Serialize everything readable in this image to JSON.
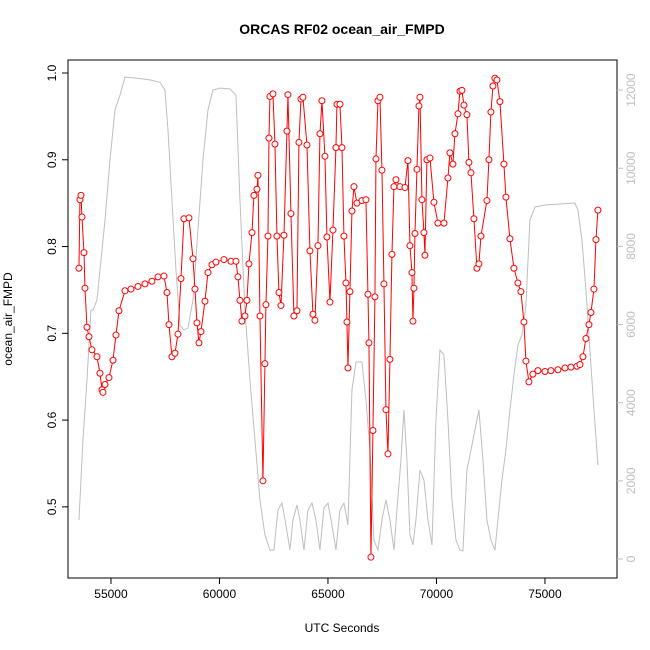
{
  "chart_data": {
    "type": "line",
    "title": "ORCAS RF02 ocean_air_FMPD",
    "x_label": "UTC Seconds",
    "y_label": "ocean_air_FMPD",
    "xlim": [
      53020,
      78320
    ],
    "ylim": [
      0.418,
      1.015
    ],
    "y2lim": [
      -486,
      12770
    ],
    "xticks": [
      55000,
      60000,
      65000,
      70000,
      75000
    ],
    "yticks": [
      0.5,
      0.6,
      0.7,
      0.8,
      0.9,
      {
        "value": 1,
        "label": "1.0"
      }
    ],
    "y2ticks": [
      0,
      2000,
      4000,
      6000,
      8000,
      10000,
      12000
    ],
    "series": [
      {
        "color": "#ff0000",
        "marker": "circle",
        "x": [
          53525,
          53571,
          53618,
          53664,
          53756,
          53802,
          53894,
          53986,
          54124,
          54355,
          54493,
          54585,
          54631,
          54724,
          54908,
          55092,
          55230,
          55369,
          55645,
          55922,
          56244,
          56567,
          56889,
          57166,
          57442,
          57581,
          57673,
          57811,
          57949,
          58087,
          58226,
          58364,
          58594,
          58779,
          58871,
          58963,
          59055,
          59147,
          59332,
          59470,
          59654,
          59838,
          60207,
          60530,
          60760,
          60852,
          60944,
          61036,
          61175,
          61267,
          61359,
          61497,
          61589,
          61728,
          61774,
          61866,
          62004,
          62096,
          62142,
          62235,
          62281,
          62327,
          62465,
          62557,
          62649,
          62741,
          62834,
          62972,
          63110,
          63156,
          63294,
          63433,
          63571,
          63663,
          63755,
          63847,
          64032,
          64170,
          64308,
          64400,
          64539,
          64631,
          64723,
          64861,
          64953,
          65092,
          65230,
          65368,
          65414,
          65552,
          65645,
          65737,
          65829,
          65875,
          65921,
          66013,
          66105,
          66198,
          66336,
          66566,
          66750,
          66843,
          66889,
          66981,
          67073,
          67165,
          67212,
          67304,
          67396,
          67488,
          67580,
          67672,
          67764,
          67856,
          67949,
          68041,
          68133,
          68317,
          68548,
          68686,
          68778,
          68870,
          68916,
          68962,
          69009,
          69101,
          69193,
          69239,
          69331,
          69423,
          69469,
          69561,
          69700,
          69884,
          70068,
          70345,
          70529,
          70621,
          70759,
          70852,
          70990,
          71082,
          71174,
          71266,
          71404,
          71496,
          71589,
          71727,
          71865,
          71957,
          72050,
          72326,
          72418,
          72510,
          72602,
          72695,
          72787,
          72925,
          73109,
          73201,
          73386,
          73570,
          73754,
          73892,
          74030,
          74123,
          74261,
          74445,
          74675,
          75000,
          75276,
          75599,
          75922,
          76198,
          76474,
          76612,
          76750,
          76889,
          77027,
          77119,
          77258,
          77350,
          77442
        ],
        "values": [
          0.775,
          0.854,
          0.859,
          0.834,
          0.793,
          0.752,
          0.707,
          0.696,
          0.681,
          0.673,
          0.654,
          0.635,
          0.632,
          0.641,
          0.649,
          0.669,
          0.698,
          0.726,
          0.749,
          0.751,
          0.754,
          0.757,
          0.76,
          0.765,
          0.766,
          0.747,
          0.71,
          0.673,
          0.677,
          0.699,
          0.763,
          0.832,
          0.833,
          0.786,
          0.751,
          0.712,
          0.689,
          0.702,
          0.737,
          0.77,
          0.779,
          0.782,
          0.785,
          0.783,
          0.783,
          0.765,
          0.738,
          0.714,
          0.72,
          0.738,
          0.78,
          0.816,
          0.859,
          0.866,
          0.882,
          0.72,
          0.53,
          0.665,
          0.733,
          0.812,
          0.925,
          0.973,
          0.976,
          0.918,
          0.812,
          0.747,
          0.732,
          0.813,
          0.933,
          0.975,
          0.838,
          0.72,
          0.726,
          0.92,
          0.97,
          0.972,
          0.917,
          0.795,
          0.722,
          0.715,
          0.801,
          0.93,
          0.968,
          0.904,
          0.811,
          0.736,
          0.819,
          0.914,
          0.964,
          0.964,
          0.914,
          0.812,
          0.758,
          0.713,
          0.66,
          0.748,
          0.841,
          0.869,
          0.85,
          0.853,
          0.854,
          0.745,
          0.689,
          0.442,
          0.588,
          0.742,
          0.901,
          0.968,
          0.972,
          0.888,
          0.757,
          0.612,
          0.561,
          0.67,
          0.791,
          0.869,
          0.877,
          0.869,
          0.868,
          0.899,
          0.801,
          0.77,
          0.714,
          0.752,
          0.815,
          0.889,
          0.962,
          0.972,
          0.854,
          0.816,
          0.79,
          0.9,
          0.902,
          0.851,
          0.827,
          0.827,
          0.879,
          0.908,
          0.895,
          0.93,
          0.953,
          0.979,
          0.98,
          0.963,
          0.952,
          0.897,
          0.885,
          0.832,
          0.775,
          0.78,
          0.812,
          0.853,
          0.9,
          0.955,
          0.985,
          0.994,
          0.992,
          0.967,
          0.895,
          0.857,
          0.809,
          0.775,
          0.758,
          0.748,
          0.713,
          0.668,
          0.644,
          0.653,
          0.657,
          0.656,
          0.657,
          0.658,
          0.66,
          0.661,
          0.662,
          0.664,
          0.673,
          0.694,
          0.71,
          0.724,
          0.751,
          0.808,
          0.842
        ]
      },
      {
        "color": "#bebebe",
        "axis": "y2",
        "x": [
          53525,
          53710,
          53894,
          54078,
          54171,
          54355,
          54493,
          54724,
          54954,
          55184,
          55415,
          55645,
          56106,
          56797,
          57258,
          57488,
          57627,
          57811,
          57995,
          58180,
          58364,
          58548,
          58779,
          59009,
          59239,
          59470,
          59700,
          60023,
          60484,
          60760,
          60944,
          61175,
          61405,
          61636,
          61866,
          62096,
          62327,
          62511,
          62695,
          62880,
          63064,
          63248,
          63387,
          63571,
          63709,
          63894,
          64078,
          64262,
          64446,
          64631,
          64815,
          64999,
          65184,
          65368,
          65552,
          65737,
          65921,
          66105,
          66290,
          66566,
          66750,
          66935,
          67119,
          67304,
          67488,
          67672,
          67856,
          68041,
          68179,
          68363,
          68501,
          68640,
          68778,
          68916,
          69054,
          69239,
          69423,
          69608,
          69792,
          69976,
          70160,
          70345,
          70529,
          70713,
          70898,
          71082,
          71220,
          71404,
          71589,
          71773,
          71957,
          72142,
          72326,
          72510,
          72695,
          72833,
          73017,
          73201,
          73386,
          73570,
          73754,
          73939,
          74123,
          74307,
          74537,
          75000,
          75690,
          76381,
          76520,
          76704,
          76889,
          77073,
          77258,
          77442
        ],
        "values": [
          998,
          3045,
          4580,
          6370,
          6370,
          6630,
          7390,
          8670,
          10210,
          11490,
          11870,
          12330,
          12310,
          12260,
          12200,
          12000,
          10980,
          9190,
          7390,
          5990,
          5860,
          5910,
          6630,
          8420,
          10210,
          11490,
          12000,
          12050,
          12030,
          11870,
          9190,
          6370,
          4580,
          3045,
          1510,
          614,
          230,
          230,
          1254,
          1433,
          870,
          230,
          998,
          1382,
          998,
          230,
          1254,
          1433,
          998,
          230,
          1305,
          1433,
          870,
          230,
          1254,
          1433,
          870,
          4325,
          5041,
          5041,
          4069,
          2789,
          486,
          230,
          998,
          1510,
          998,
          230,
          1254,
          2533,
          3813,
          2533,
          614,
          358,
          998,
          2277,
          2021,
          998,
          358,
          3557,
          5348,
          5220,
          3557,
          1510,
          486,
          230,
          205,
          2277,
          2789,
          3301,
          3813,
          2533,
          998,
          486,
          230,
          998,
          2021,
          2789,
          3813,
          4708,
          5476,
          5732,
          6500,
          8675,
          9007,
          9058,
          9084,
          9109,
          8930,
          8163,
          6883,
          5348,
          3813,
          2405
        ]
      }
    ]
  }
}
